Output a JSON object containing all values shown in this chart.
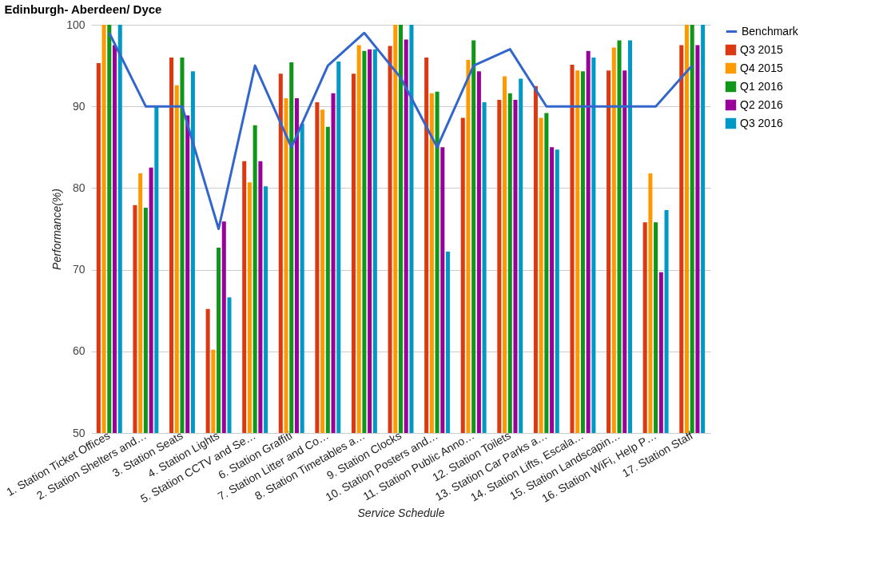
{
  "chart_data": {
    "type": "bar",
    "title": "Edinburgh- Aberdeen/ Dyce",
    "xlabel": "Service Schedule",
    "ylabel": "Performance(%)",
    "categories": [
      "1. Station Ticket Offices",
      "2. Station Shelters and…",
      "3. Station Seats",
      "4. Station Lights",
      "5. Station CCTV and Se…",
      "6. Station Graffiti",
      "7. Station Litter and Co…",
      "8. Station Timetables a…",
      "9. Station Clocks",
      "10. Station Posters and…",
      "11. Station Public Anno…",
      "12. Station Toilets",
      "13. Station Car Parks a…",
      "14. Station Lifts, Escala…",
      "15. Station Landscapin…",
      "16. Station WiFi, Help P…",
      "17. Station Staff"
    ],
    "series": [
      {
        "name": "Benchmark",
        "type": "line",
        "color": "#3366cc",
        "values": [
          99,
          90,
          90,
          75,
          95,
          85,
          95,
          99,
          93.5,
          85,
          95,
          97,
          90,
          90,
          90,
          90,
          95
        ]
      },
      {
        "name": "Q3 2015",
        "color": "#dc3912",
        "values": [
          95.3,
          77.9,
          96,
          65.2,
          83.3,
          94,
          90.5,
          94,
          97.4,
          96,
          88.6,
          90.8,
          92.5,
          95.1,
          94.4,
          75.8,
          97.5
        ]
      },
      {
        "name": "Q4 2015",
        "color": "#ff9900",
        "values": [
          100,
          81.8,
          92.6,
          60.2,
          80.7,
          91,
          89.6,
          97.5,
          100,
          91.6,
          95.7,
          93.7,
          88.6,
          94.4,
          97.2,
          81.8,
          100
        ]
      },
      {
        "name": "Q1 2016",
        "color": "#109618",
        "values": [
          100,
          77.6,
          96,
          72.7,
          87.7,
          95.4,
          87.5,
          96.8,
          100,
          91.8,
          98.1,
          91.6,
          89.2,
          94.3,
          98.1,
          75.8,
          100
        ]
      },
      {
        "name": "Q2 2016",
        "color": "#990099",
        "values": [
          97.5,
          82.5,
          88.9,
          75.9,
          83.3,
          91,
          91.6,
          97,
          98.2,
          85,
          94.3,
          90.8,
          85,
          96.8,
          94.4,
          69.7,
          97.5
        ]
      },
      {
        "name": "Q3 2016",
        "color": "#0099c6",
        "values": [
          100,
          90,
          94.3,
          66.6,
          80.2,
          87.9,
          95.5,
          97,
          100,
          72.2,
          90.5,
          93.4,
          84.7,
          96,
          98.1,
          77.3,
          100
        ]
      }
    ],
    "ylim": [
      50,
      100
    ],
    "yticks": [
      50,
      60,
      70,
      80,
      90,
      100
    ],
    "grid": "y",
    "legend": "right"
  }
}
